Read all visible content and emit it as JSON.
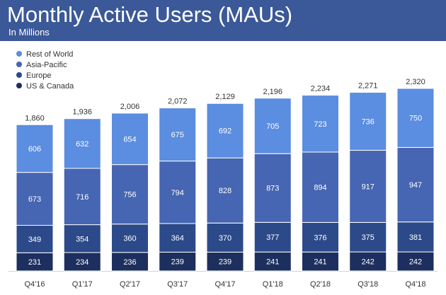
{
  "header": {
    "title": "Monthly Active Users (MAUs)",
    "subtitle": "In Millions",
    "background": "#3b5998"
  },
  "chart_data": {
    "type": "bar",
    "stacked": true,
    "title": "Monthly Active Users (MAUs)",
    "subtitle": "In Millions",
    "xlabel": "",
    "ylabel": "",
    "legend_position": "top-left",
    "grid": false,
    "categories": [
      "Q4'16",
      "Q1'17",
      "Q2'17",
      "Q3'17",
      "Q4'17",
      "Q1'18",
      "Q2'18",
      "Q3'18",
      "Q4'18"
    ],
    "series": [
      {
        "name": "US & Canada",
        "color": "#1d2f5e",
        "values": [
          231,
          234,
          236,
          239,
          239,
          241,
          241,
          242,
          242
        ]
      },
      {
        "name": "Europe",
        "color": "#2c4a8a",
        "values": [
          349,
          354,
          360,
          364,
          370,
          377,
          376,
          375,
          381
        ]
      },
      {
        "name": "Asia-Pacific",
        "color": "#4665b2",
        "values": [
          673,
          716,
          756,
          794,
          828,
          873,
          894,
          917,
          947
        ]
      },
      {
        "name": "Rest of World",
        "color": "#5b8de0",
        "values": [
          606,
          632,
          654,
          675,
          692,
          705,
          723,
          736,
          750
        ]
      }
    ],
    "totals": [
      "1,860",
      "1,936",
      "2,006",
      "2,072",
      "2,129",
      "2,196",
      "2,234",
      "2,271",
      "2,320"
    ],
    "ylim": [
      0,
      2400
    ]
  }
}
